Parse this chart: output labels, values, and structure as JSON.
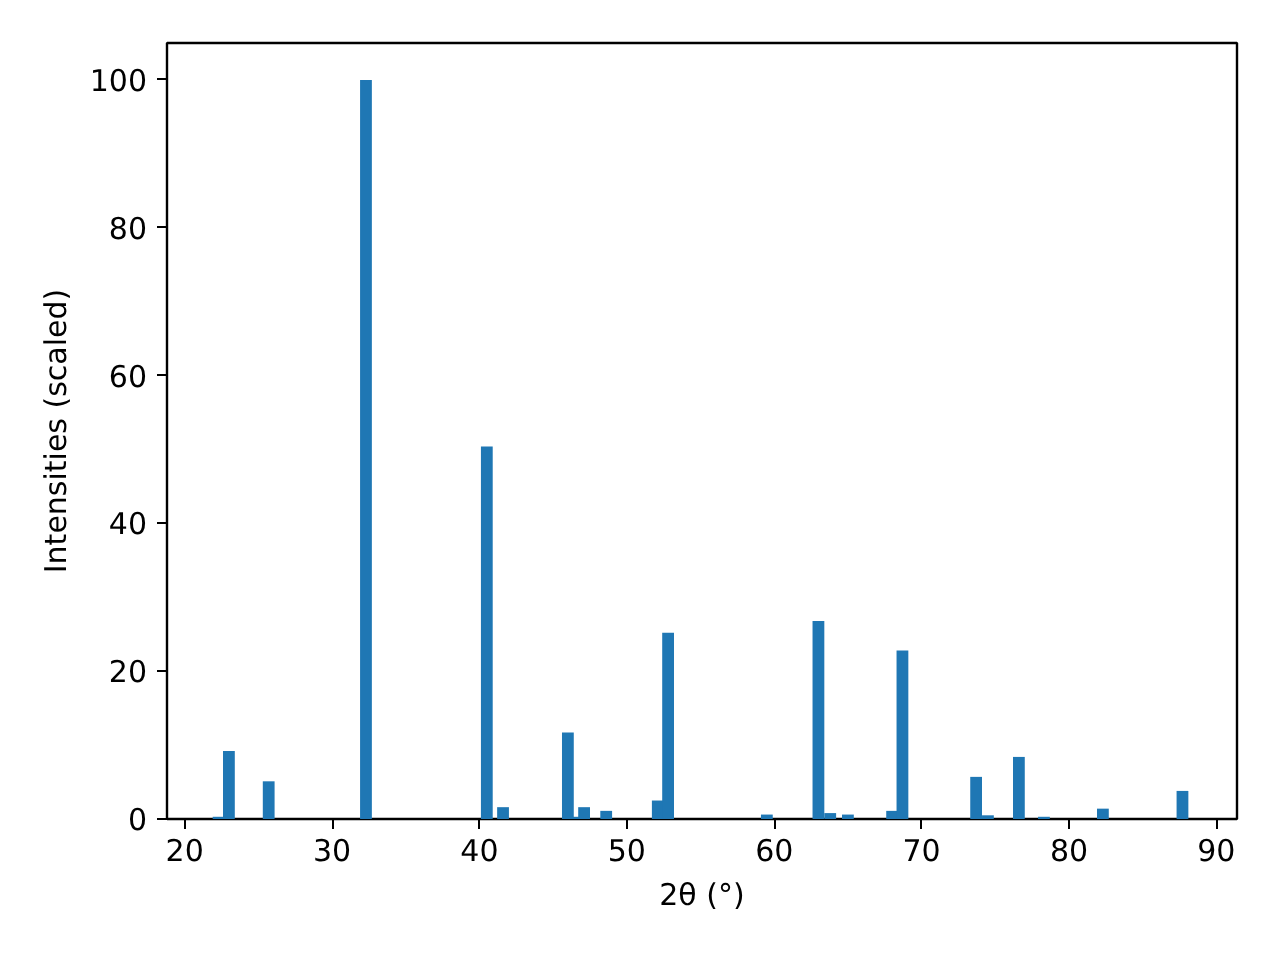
{
  "chart_data": {
    "type": "bar",
    "xlabel": "2θ (°)",
    "ylabel": "Intensities (scaled)",
    "color": "#1f77b4",
    "x": [
      22.3,
      23.0,
      25.7,
      32.3,
      40.5,
      41.6,
      46.0,
      46.6,
      47.1,
      48.6,
      52.1,
      52.8,
      59.5,
      63.0,
      63.8,
      65.0,
      68.0,
      68.7,
      73.7,
      74.5,
      76.6,
      78.3,
      82.3,
      87.7
    ],
    "values": [
      0.3,
      9.2,
      5.1,
      100,
      50.4,
      1.6,
      11.7,
      0.3,
      1.6,
      1.1,
      2.5,
      25.2,
      0.6,
      26.8,
      0.8,
      0.6,
      1.1,
      22.8,
      5.7,
      0.5,
      8.4,
      0.3,
      1.4,
      3.8
    ],
    "xlim": [
      18.8,
      91.4
    ],
    "xticks": [
      20,
      30,
      40,
      50,
      60,
      70,
      80,
      90
    ],
    "ylim": [
      0,
      105
    ],
    "yticks": [
      0,
      20,
      40,
      60,
      80,
      100
    ],
    "grid": false
  }
}
